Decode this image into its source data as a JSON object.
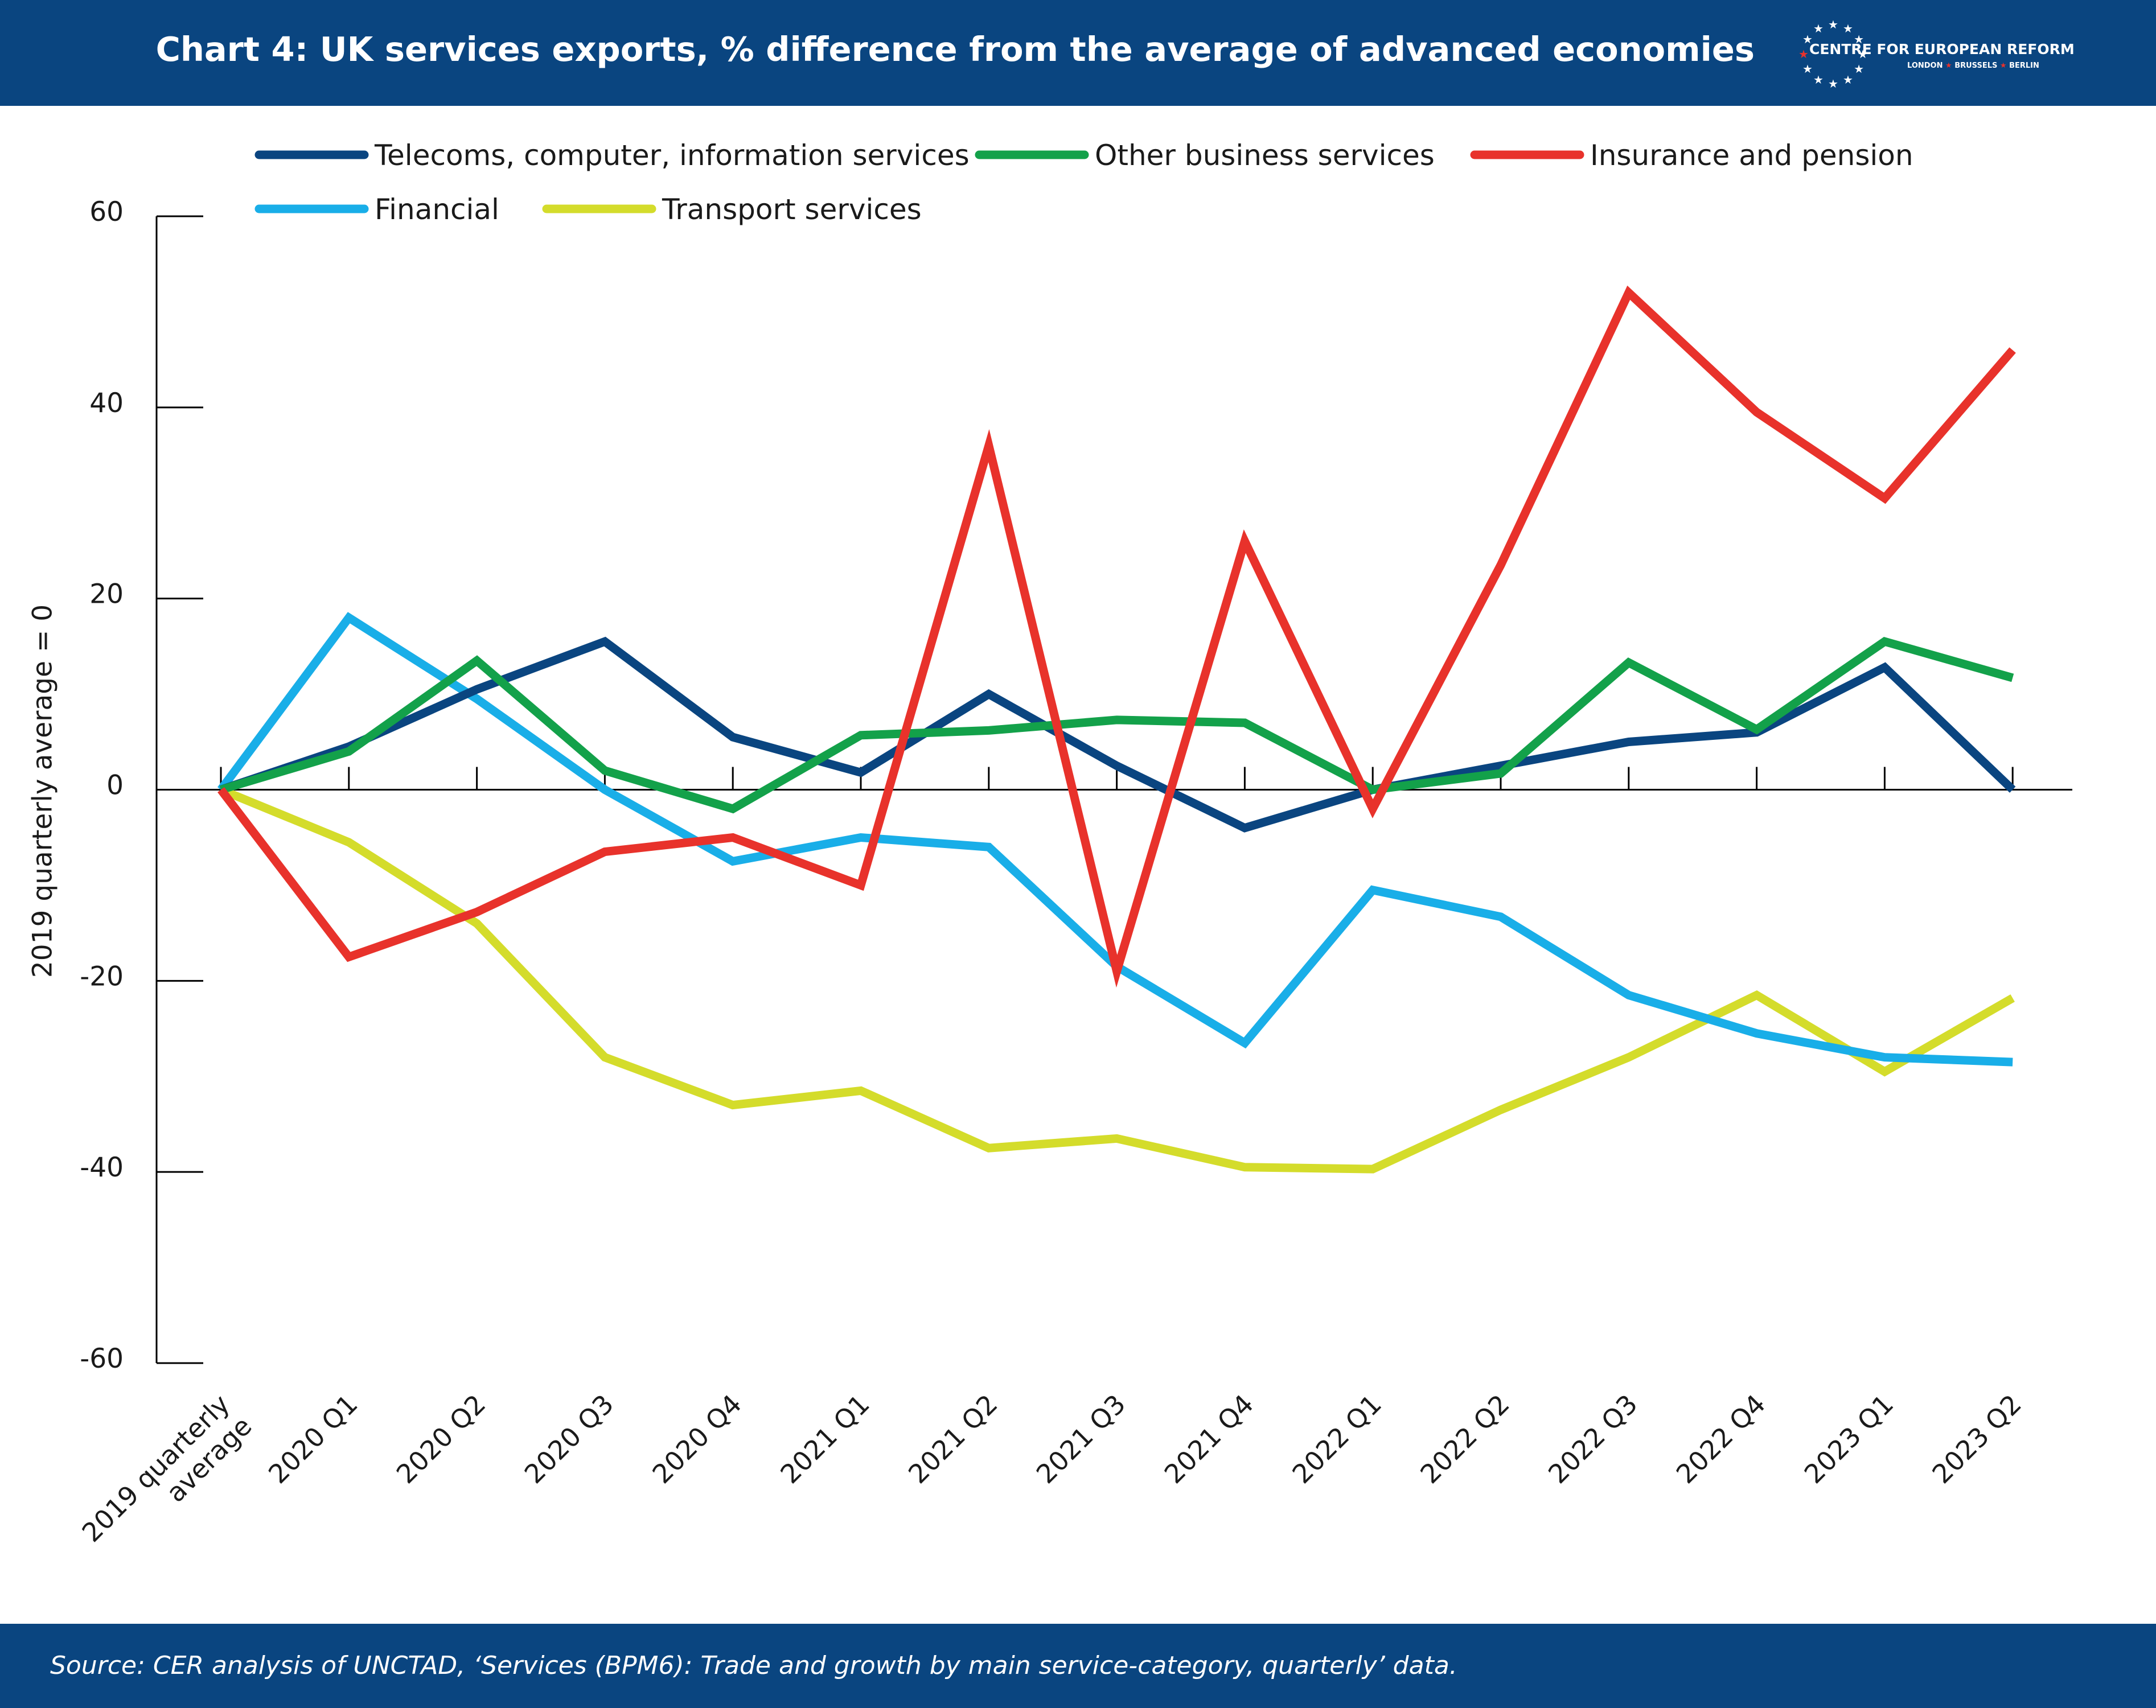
{
  "header": {
    "title": "Chart 4: UK services exports, % difference from the average of advanced economies",
    "logo_name": "CENTRE FOR EUROPEAN REFORM",
    "logo_cities": [
      "LONDON",
      "BRUSSELS",
      "BERLIN"
    ]
  },
  "footer": {
    "source": "Source: CER analysis of UNCTAD, ‘Services (BPM6): Trade and growth by main service-category, quarterly’ data."
  },
  "colors": {
    "header_bg": "#0a4580",
    "logo_star_red": "#e8322b"
  },
  "chart_data": {
    "type": "line",
    "title": "Chart 4: UK services exports, % difference from the average of advanced economies",
    "xlabel": "",
    "ylabel": "2019 quarterly average = 0",
    "ylim": [
      -60,
      60
    ],
    "yticks": [
      60,
      40,
      20,
      0,
      -20,
      -40,
      -60
    ],
    "ytick_labels": [
      "60",
      "40",
      "20",
      "0",
      "-20",
      "-40",
      "-60"
    ],
    "grid": false,
    "legend_position": "top",
    "categories": [
      "2019 quarterly average",
      "2020 Q1",
      "2020 Q2",
      "2020 Q3",
      "2020 Q4",
      "2021 Q1",
      "2021 Q2",
      "2021 Q3",
      "2021 Q4",
      "2022 Q1",
      "2022 Q2",
      "2022 Q3",
      "2022 Q4",
      "2023 Q1",
      "2023 Q2"
    ],
    "series": [
      {
        "name": "Telecoms, computer, information services",
        "color": "#0a4580",
        "values": [
          0,
          4.5,
          10.5,
          15.5,
          5.5,
          1.8,
          10,
          2.5,
          -4,
          0,
          2.5,
          5,
          6,
          12.8,
          0
        ]
      },
      {
        "name": "Other business services",
        "color": "#13a14a",
        "values": [
          0,
          4,
          13.5,
          2,
          -2,
          5.7,
          6.2,
          7.3,
          7,
          0,
          1.7,
          13.3,
          6.3,
          15.5,
          11.7
        ]
      },
      {
        "name": "Insurance and pension",
        "color": "#e8322b",
        "values": [
          0,
          -17.5,
          -12.8,
          -6.5,
          -5,
          -10,
          36,
          -19,
          26,
          -2,
          23.5,
          52,
          39.5,
          30.5,
          46
        ]
      },
      {
        "name": "Financial",
        "color": "#19aee8",
        "values": [
          0,
          18,
          9.5,
          0,
          -7.5,
          -5,
          -6,
          -18.5,
          -26.5,
          -10.5,
          -13.3,
          -21.5,
          -25.5,
          -28,
          -28.5
        ]
      },
      {
        "name": "Transport services",
        "color": "#d4dc2b",
        "values": [
          0,
          -5.5,
          -14,
          -28,
          -33,
          -31.5,
          -37.5,
          -36.5,
          -39.5,
          -39.7,
          -33.5,
          -28,
          -21.5,
          -29.5,
          -21.8
        ]
      }
    ]
  }
}
